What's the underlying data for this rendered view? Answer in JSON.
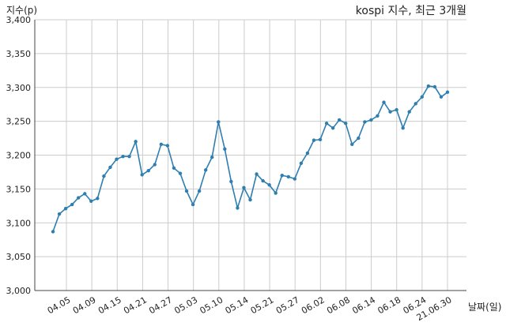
{
  "chart_data": {
    "type": "line",
    "title": "kospi 지수, 최근 3개월",
    "ylabel": "지수(p)",
    "xlabel": "날짜(일)",
    "ylim": [
      3000,
      3400
    ],
    "yticks": [
      3000,
      3050,
      3100,
      3150,
      3200,
      3250,
      3300,
      3350,
      3400
    ],
    "ytick_labels": [
      "3,000",
      "3,050",
      "3,100",
      "3,150",
      "3,200",
      "3,250",
      "3,300",
      "3,350",
      "3,400"
    ],
    "xtick_labels": [
      "04.05",
      "04.09",
      "04.15",
      "04.21",
      "04.27",
      "05.03",
      "05.10",
      "05.14",
      "05.21",
      "05.27",
      "06.02",
      "06.08",
      "06.14",
      "06.18",
      "06.24",
      "21.06.30"
    ],
    "grid": true,
    "color": "#2e7fb0",
    "series": [
      {
        "values": [
          3087,
          3113,
          3121,
          3127,
          3137,
          3143,
          3132,
          3136,
          3169,
          3182,
          3194,
          3198,
          3198,
          3220,
          3171,
          3177,
          3186,
          3216,
          3214,
          3181,
          3173,
          3147,
          3127,
          3147,
          3178,
          3197,
          3249,
          3209,
          3161,
          3122,
          3152,
          3134,
          3172,
          3162,
          3156,
          3144,
          3170,
          3168,
          3165,
          3188,
          3203,
          3222,
          3223,
          3247,
          3240,
          3252,
          3247,
          3216,
          3225,
          3249,
          3252,
          3258,
          3278,
          3264,
          3267,
          3240,
          3264,
          3276,
          3286,
          3302,
          3301,
          3286,
          3293
        ]
      }
    ]
  }
}
